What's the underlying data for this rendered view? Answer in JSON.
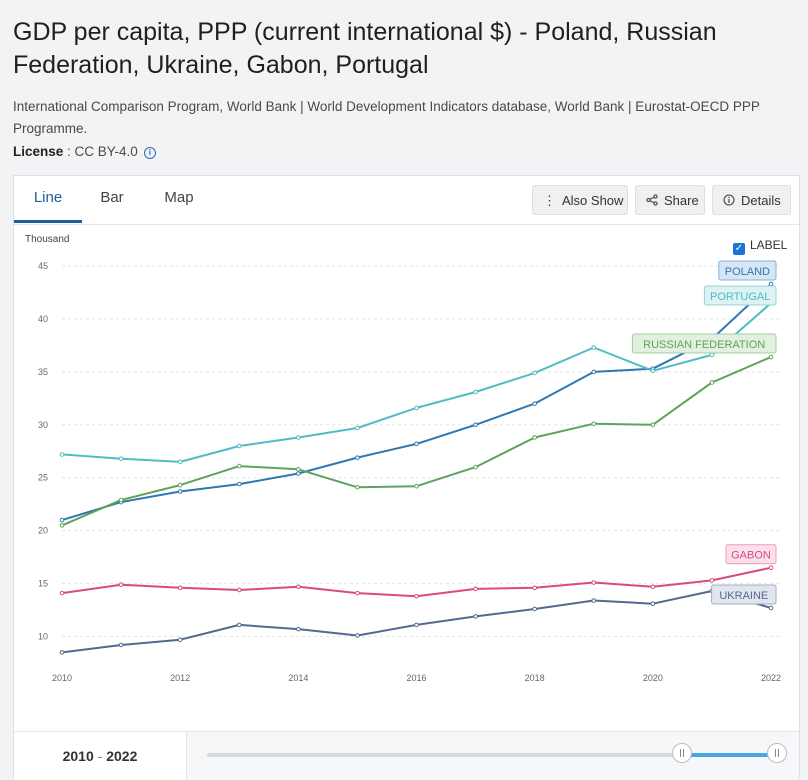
{
  "header": {
    "title": "GDP per capita, PPP (current international $) - Poland, Russian Federation, Ukraine, Gabon, Portugal",
    "source": "International Comparison Program, World Bank | World Development Indicators database, World Bank | Eurostat-OECD PPP Programme.",
    "license_label": "License",
    "license_value": " : CC BY-4.0",
    "info_icon": "i"
  },
  "tabs": [
    {
      "label": "Line",
      "active": true
    },
    {
      "label": "Bar",
      "active": false
    },
    {
      "label": "Map",
      "active": false
    }
  ],
  "toolbar": {
    "also_show": "Also Show",
    "share": "Share",
    "details": "Details",
    "also_show_icon": "⋮",
    "share_icon": "share-icon",
    "details_icon": "info-icon"
  },
  "label_toggle": {
    "label": "LABEL",
    "checked": true
  },
  "range": {
    "start": "2010",
    "sep": " - ",
    "end": "2022",
    "selected_start": 2020,
    "selected_end": 2022
  },
  "colors": {
    "accent": "#1a5f9e",
    "poland": "#2f77b1",
    "portugal": "#50bcc4",
    "russia": "#5fa35a",
    "gabon": "#d94a82",
    "ukraine": "#56688f"
  },
  "chart_data": {
    "type": "line",
    "title": "",
    "xlabel": "",
    "ylabel": "Thousand",
    "x": [
      2010,
      2011,
      2012,
      2013,
      2014,
      2015,
      2016,
      2017,
      2018,
      2019,
      2020,
      2021,
      2022
    ],
    "xticks": [
      2010,
      2012,
      2014,
      2016,
      2018,
      2020,
      2022
    ],
    "yticks": [
      10,
      15,
      20,
      25,
      30,
      35,
      40,
      45
    ],
    "ylim": [
      7.5,
      45
    ],
    "grid": true,
    "series": [
      {
        "name": "POLAND",
        "color": "#2f77b1",
        "label_fill": "#d6e6f5",
        "label_stroke": "#86b2da",
        "values": [
          21.0,
          22.7,
          23.7,
          24.4,
          25.4,
          26.9,
          28.2,
          30.0,
          32.0,
          35.0,
          35.3,
          38.1,
          43.3
        ]
      },
      {
        "name": "PORTUGAL",
        "color": "#50bcc4",
        "label_fill": "#dcf2f3",
        "label_stroke": "#96d4d8",
        "values": [
          27.2,
          26.8,
          26.5,
          28.0,
          28.8,
          29.7,
          31.6,
          33.1,
          34.9,
          37.3,
          35.1,
          36.6,
          41.5
        ]
      },
      {
        "name": "RUSSIAN FEDERATION",
        "color": "#5fa35a",
        "label_fill": "#e1f0df",
        "label_stroke": "#a6cea2",
        "values": [
          20.5,
          22.9,
          24.3,
          26.1,
          25.8,
          24.1,
          24.2,
          26.0,
          28.8,
          30.1,
          30.0,
          34.0,
          36.4
        ]
      },
      {
        "name": "GABON",
        "color": "#d94a82",
        "label_fill": "#fbdfea",
        "label_stroke": "#ea9dbb",
        "values": [
          14.1,
          14.9,
          14.6,
          14.4,
          14.7,
          14.1,
          13.8,
          14.5,
          14.6,
          15.1,
          14.7,
          15.3,
          16.5
        ]
      },
      {
        "name": "UKRAINE",
        "color": "#56688f",
        "label_fill": "#e1e5ee",
        "label_stroke": "#a3adc4",
        "values": [
          8.5,
          9.2,
          9.7,
          11.1,
          10.7,
          10.1,
          11.1,
          11.9,
          12.6,
          13.4,
          13.1,
          14.3,
          12.7
        ]
      }
    ]
  }
}
